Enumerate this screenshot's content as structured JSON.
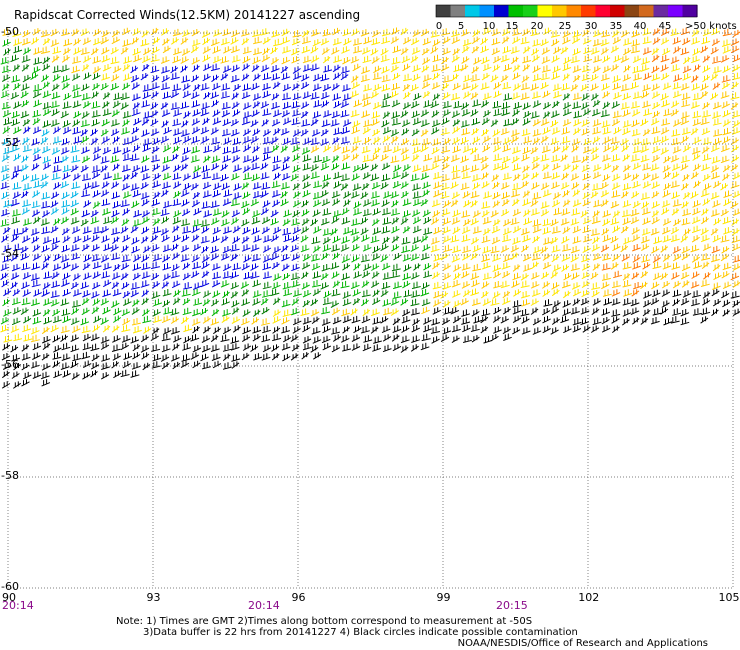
{
  "title": "Rapidscat Corrected Winds(12.5KM) 20141227 ascending",
  "legend": {
    "tick_labels": [
      "0",
      "5",
      "10",
      "15",
      "20",
      "25",
      "30",
      "35",
      "40",
      "45",
      ">50 knots"
    ],
    "colors": [
      "#404040",
      "#808080",
      "#00c8e8",
      "#0090ff",
      "#0000d0",
      "#00c000",
      "#18d018",
      "#ffff00",
      "#ffc800",
      "#ff8800",
      "#ff3a00",
      "#ff0030",
      "#d00000",
      "#8b4513",
      "#d2691e",
      "#6a2aa0",
      "#7a00ff",
      "#5000a0"
    ]
  },
  "axes": {
    "x_labels": [
      "90",
      "93",
      "96",
      "99",
      "102",
      "105"
    ],
    "y_labels": [
      "-50",
      "-52",
      "-54",
      "-56",
      "-58",
      "-60"
    ],
    "time_labels": [
      "20:14",
      "20:14",
      "20:15"
    ]
  },
  "notes": {
    "line1": "Note: 1) Times are GMT 2)Times along bottom correspond to measurement at -50S",
    "line2": "3)Data buffer is 22 hrs from 20141227 4) Black circles indicate possible contamination",
    "credit": "NOAA/NESDIS/Office of Research and Applications"
  },
  "wind_colors": {
    "light_blue": "#00b4e6",
    "blue": "#0000e0",
    "green": "#00b400",
    "dark_green": "#007800",
    "yellow": "#ffe600",
    "gold": "#ffc800",
    "orange": "#ff7a00",
    "black": "#000000"
  }
}
